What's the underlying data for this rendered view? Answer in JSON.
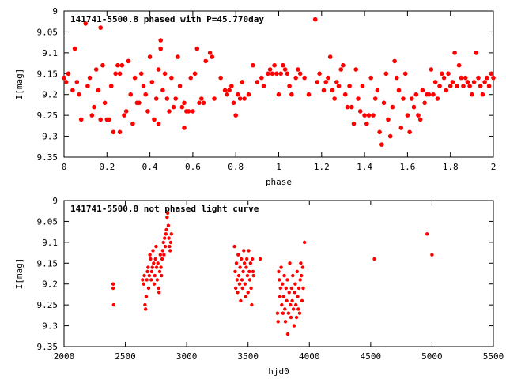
{
  "chart_data": [
    {
      "type": "scatter",
      "title": "141741-5500.8 phased with P=45.770day",
      "xlabel": "phase",
      "ylabel": "I[mag]",
      "xlim": [
        0,
        2
      ],
      "ylim": [
        9.35,
        9.0
      ],
      "y_inverted": true,
      "xticks": [
        "0",
        "0.2",
        "0.4",
        "0.6",
        "0.8",
        "1",
        "1.2",
        "1.4",
        "1.6",
        "1.8",
        "2"
      ],
      "yticks": [
        "9",
        "9.05",
        "9.1",
        "9.15",
        "9.2",
        "9.25",
        "9.3",
        "9.35"
      ],
      "grid": false,
      "marker_color": "#ff0000",
      "points": [
        [
          0.0,
          9.16
        ],
        [
          0.01,
          9.17
        ],
        [
          0.02,
          9.15
        ],
        [
          0.04,
          9.19
        ],
        [
          0.05,
          9.09
        ],
        [
          0.06,
          9.17
        ],
        [
          0.07,
          9.2
        ],
        [
          0.08,
          9.26
        ],
        [
          0.1,
          9.03
        ],
        [
          0.11,
          9.18
        ],
        [
          0.12,
          9.16
        ],
        [
          0.13,
          9.25
        ],
        [
          0.14,
          9.23
        ],
        [
          0.15,
          9.14
        ],
        [
          0.16,
          9.19
        ],
        [
          0.17,
          9.04
        ],
        [
          0.17,
          9.26
        ],
        [
          0.18,
          9.13
        ],
        [
          0.19,
          9.22
        ],
        [
          0.2,
          9.26
        ],
        [
          0.21,
          9.26
        ],
        [
          0.22,
          9.18
        ],
        [
          0.23,
          9.29
        ],
        [
          0.24,
          9.15
        ],
        [
          0.25,
          9.13
        ],
        [
          0.26,
          9.15
        ],
        [
          0.26,
          9.29
        ],
        [
          0.27,
          9.13
        ],
        [
          0.28,
          9.25
        ],
        [
          0.29,
          9.24
        ],
        [
          0.3,
          9.12
        ],
        [
          0.31,
          9.2
        ],
        [
          0.32,
          9.27
        ],
        [
          0.33,
          9.16
        ],
        [
          0.34,
          9.22
        ],
        [
          0.35,
          9.22
        ],
        [
          0.36,
          9.15
        ],
        [
          0.37,
          9.18
        ],
        [
          0.38,
          9.2
        ],
        [
          0.39,
          9.24
        ],
        [
          0.4,
          9.11
        ],
        [
          0.41,
          9.17
        ],
        [
          0.42,
          9.26
        ],
        [
          0.43,
          9.21
        ],
        [
          0.44,
          9.27
        ],
        [
          0.44,
          9.14
        ],
        [
          0.45,
          9.09
        ],
        [
          0.45,
          9.07
        ],
        [
          0.46,
          9.19
        ],
        [
          0.47,
          9.15
        ],
        [
          0.48,
          9.21
        ],
        [
          0.49,
          9.24
        ],
        [
          0.5,
          9.16
        ],
        [
          0.51,
          9.23
        ],
        [
          0.52,
          9.21
        ],
        [
          0.53,
          9.11
        ],
        [
          0.54,
          9.18
        ],
        [
          0.55,
          9.23
        ],
        [
          0.56,
          9.28
        ],
        [
          0.56,
          9.22
        ],
        [
          0.57,
          9.24
        ],
        [
          0.58,
          9.24
        ],
        [
          0.59,
          9.16
        ],
        [
          0.6,
          9.24
        ],
        [
          0.61,
          9.15
        ],
        [
          0.62,
          9.09
        ],
        [
          0.63,
          9.22
        ],
        [
          0.64,
          9.21
        ],
        [
          0.65,
          9.22
        ],
        [
          0.66,
          9.12
        ],
        [
          0.68,
          9.1
        ],
        [
          0.69,
          9.11
        ],
        [
          0.7,
          9.21
        ],
        [
          0.73,
          9.16
        ],
        [
          0.75,
          9.19
        ],
        [
          0.76,
          9.2
        ],
        [
          0.77,
          9.19
        ],
        [
          0.78,
          9.18
        ],
        [
          0.79,
          9.22
        ],
        [
          0.8,
          9.25
        ],
        [
          0.81,
          9.2
        ],
        [
          0.82,
          9.21
        ],
        [
          0.83,
          9.17
        ],
        [
          0.84,
          9.21
        ],
        [
          0.86,
          9.2
        ],
        [
          0.88,
          9.13
        ],
        [
          0.9,
          9.17
        ],
        [
          0.92,
          9.16
        ],
        [
          0.93,
          9.18
        ],
        [
          0.95,
          9.15
        ],
        [
          0.96,
          9.14
        ],
        [
          0.97,
          9.15
        ],
        [
          0.98,
          9.13
        ],
        [
          0.99,
          9.15
        ],
        [
          1.0,
          9.2
        ],
        [
          1.01,
          9.15
        ],
        [
          1.02,
          9.13
        ],
        [
          1.03,
          9.14
        ],
        [
          1.04,
          9.15
        ],
        [
          1.05,
          9.18
        ],
        [
          1.06,
          9.2
        ],
        [
          1.08,
          9.16
        ],
        [
          1.09,
          9.14
        ],
        [
          1.1,
          9.15
        ],
        [
          1.12,
          9.16
        ],
        [
          1.14,
          9.2
        ],
        [
          1.17,
          9.02
        ],
        [
          1.18,
          9.17
        ],
        [
          1.19,
          9.15
        ],
        [
          1.21,
          9.19
        ],
        [
          1.22,
          9.17
        ],
        [
          1.23,
          9.16
        ],
        [
          1.24,
          9.11
        ],
        [
          1.25,
          9.19
        ],
        [
          1.26,
          9.21
        ],
        [
          1.27,
          9.17
        ],
        [
          1.28,
          9.18
        ],
        [
          1.29,
          9.14
        ],
        [
          1.3,
          9.13
        ],
        [
          1.31,
          9.2
        ],
        [
          1.32,
          9.23
        ],
        [
          1.33,
          9.18
        ],
        [
          1.34,
          9.23
        ],
        [
          1.35,
          9.27
        ],
        [
          1.36,
          9.14
        ],
        [
          1.37,
          9.21
        ],
        [
          1.38,
          9.24
        ],
        [
          1.39,
          9.18
        ],
        [
          1.4,
          9.25
        ],
        [
          1.41,
          9.27
        ],
        [
          1.42,
          9.25
        ],
        [
          1.43,
          9.16
        ],
        [
          1.44,
          9.25
        ],
        [
          1.45,
          9.21
        ],
        [
          1.46,
          9.19
        ],
        [
          1.47,
          9.29
        ],
        [
          1.48,
          9.32
        ],
        [
          1.49,
          9.22
        ],
        [
          1.5,
          9.15
        ],
        [
          1.51,
          9.26
        ],
        [
          1.52,
          9.3
        ],
        [
          1.53,
          9.23
        ],
        [
          1.54,
          9.12
        ],
        [
          1.55,
          9.16
        ],
        [
          1.56,
          9.19
        ],
        [
          1.57,
          9.28
        ],
        [
          1.58,
          9.21
        ],
        [
          1.59,
          9.15
        ],
        [
          1.6,
          9.25
        ],
        [
          1.61,
          9.29
        ],
        [
          1.62,
          9.21
        ],
        [
          1.63,
          9.23
        ],
        [
          1.64,
          9.2
        ],
        [
          1.65,
          9.25
        ],
        [
          1.66,
          9.26
        ],
        [
          1.67,
          9.19
        ],
        [
          1.68,
          9.22
        ],
        [
          1.69,
          9.2
        ],
        [
          1.7,
          9.2
        ],
        [
          1.71,
          9.14
        ],
        [
          1.72,
          9.2
        ],
        [
          1.73,
          9.17
        ],
        [
          1.74,
          9.21
        ],
        [
          1.75,
          9.18
        ],
        [
          1.76,
          9.15
        ],
        [
          1.77,
          9.16
        ],
        [
          1.78,
          9.19
        ],
        [
          1.79,
          9.15
        ],
        [
          1.8,
          9.18
        ],
        [
          1.81,
          9.17
        ],
        [
          1.82,
          9.1
        ],
        [
          1.83,
          9.18
        ],
        [
          1.84,
          9.13
        ],
        [
          1.85,
          9.16
        ],
        [
          1.86,
          9.18
        ],
        [
          1.87,
          9.16
        ],
        [
          1.88,
          9.17
        ],
        [
          1.89,
          9.18
        ],
        [
          1.9,
          9.2
        ],
        [
          1.91,
          9.17
        ],
        [
          1.92,
          9.1
        ],
        [
          1.93,
          9.16
        ],
        [
          1.94,
          9.18
        ],
        [
          1.95,
          9.2
        ],
        [
          1.96,
          9.17
        ],
        [
          1.97,
          9.16
        ],
        [
          1.98,
          9.18
        ],
        [
          1.99,
          9.15
        ],
        [
          2.0,
          9.16
        ]
      ]
    },
    {
      "type": "scatter",
      "title": "141741-5500.8 not phased light curve",
      "xlabel": "hjd0",
      "ylabel": "I[mag]",
      "xlim": [
        2000,
        5500
      ],
      "ylim": [
        9.35,
        9.0
      ],
      "y_inverted": true,
      "xticks": [
        "2000",
        "2500",
        "3000",
        "3500",
        "4000",
        "4500",
        "5000",
        "5500"
      ],
      "yticks": [
        "9",
        "9.05",
        "9.1",
        "9.15",
        "9.2",
        "9.25",
        "9.3",
        "9.35"
      ],
      "grid": false,
      "marker_color": "#ff0000",
      "points": [
        [
          2400,
          9.2
        ],
        [
          2400,
          9.21
        ],
        [
          2405,
          9.25
        ],
        [
          2640,
          9.19
        ],
        [
          2650,
          9.2
        ],
        [
          2655,
          9.18
        ],
        [
          2660,
          9.25
        ],
        [
          2665,
          9.26
        ],
        [
          2670,
          9.23
        ],
        [
          2675,
          9.19
        ],
        [
          2680,
          9.17
        ],
        [
          2685,
          9.16
        ],
        [
          2690,
          9.21
        ],
        [
          2695,
          9.18
        ],
        [
          2700,
          9.13
        ],
        [
          2705,
          9.14
        ],
        [
          2710,
          9.19
        ],
        [
          2715,
          9.17
        ],
        [
          2720,
          9.16
        ],
        [
          2725,
          9.12
        ],
        [
          2730,
          9.15
        ],
        [
          2735,
          9.2
        ],
        [
          2740,
          9.18
        ],
        [
          2745,
          9.14
        ],
        [
          2750,
          9.11
        ],
        [
          2755,
          9.16
        ],
        [
          2760,
          9.19
        ],
        [
          2765,
          9.15
        ],
        [
          2770,
          9.21
        ],
        [
          2775,
          9.22
        ],
        [
          2780,
          9.17
        ],
        [
          2785,
          9.13
        ],
        [
          2790,
          9.16
        ],
        [
          2795,
          9.18
        ],
        [
          2800,
          9.14
        ],
        [
          2805,
          9.12
        ],
        [
          2810,
          9.1
        ],
        [
          2815,
          9.13
        ],
        [
          2820,
          9.09
        ],
        [
          2825,
          9.11
        ],
        [
          2830,
          9.08
        ],
        [
          2835,
          9.07
        ],
        [
          2840,
          9.04
        ],
        [
          2845,
          9.03
        ],
        [
          2850,
          9.06
        ],
        [
          2855,
          9.09
        ],
        [
          2860,
          9.11
        ],
        [
          2865,
          9.12
        ],
        [
          2870,
          9.1
        ],
        [
          2875,
          9.08
        ],
        [
          3390,
          9.11
        ],
        [
          3395,
          9.17
        ],
        [
          3400,
          9.21
        ],
        [
          3405,
          9.15
        ],
        [
          3410,
          9.19
        ],
        [
          3415,
          9.22
        ],
        [
          3420,
          9.13
        ],
        [
          3425,
          9.18
        ],
        [
          3430,
          9.2
        ],
        [
          3435,
          9.16
        ],
        [
          3440,
          9.24
        ],
        [
          3445,
          9.14
        ],
        [
          3450,
          9.19
        ],
        [
          3455,
          9.21
        ],
        [
          3460,
          9.17
        ],
        [
          3465,
          9.12
        ],
        [
          3470,
          9.15
        ],
        [
          3475,
          9.2
        ],
        [
          3480,
          9.23
        ],
        [
          3485,
          9.16
        ],
        [
          3490,
          9.14
        ],
        [
          3495,
          9.18
        ],
        [
          3500,
          9.22
        ],
        [
          3505,
          9.12
        ],
        [
          3510,
          9.17
        ],
        [
          3515,
          9.19
        ],
        [
          3520,
          9.15
        ],
        [
          3525,
          9.21
        ],
        [
          3530,
          9.25
        ],
        [
          3535,
          9.14
        ],
        [
          3540,
          9.17
        ],
        [
          3545,
          9.18
        ],
        [
          3600,
          9.14
        ],
        [
          3740,
          9.27
        ],
        [
          3745,
          9.29
        ],
        [
          3750,
          9.17
        ],
        [
          3755,
          9.19
        ],
        [
          3760,
          9.23
        ],
        [
          3765,
          9.21
        ],
        [
          3770,
          9.16
        ],
        [
          3775,
          9.25
        ],
        [
          3780,
          9.2
        ],
        [
          3785,
          9.27
        ],
        [
          3790,
          9.23
        ],
        [
          3795,
          9.18
        ],
        [
          3800,
          9.26
        ],
        [
          3805,
          9.29
        ],
        [
          3810,
          9.21
        ],
        [
          3815,
          9.24
        ],
        [
          3820,
          9.19
        ],
        [
          3825,
          9.32
        ],
        [
          3830,
          9.27
        ],
        [
          3835,
          9.22
        ],
        [
          3840,
          9.15
        ],
        [
          3845,
          9.25
        ],
        [
          3850,
          9.28
        ],
        [
          3855,
          9.21
        ],
        [
          3860,
          9.24
        ],
        [
          3865,
          9.18
        ],
        [
          3870,
          9.26
        ],
        [
          3875,
          9.3
        ],
        [
          3880,
          9.22
        ],
        [
          3885,
          9.2
        ],
        [
          3890,
          9.25
        ],
        [
          3895,
          9.28
        ],
        [
          3900,
          9.17
        ],
        [
          3905,
          9.23
        ],
        [
          3910,
          9.26
        ],
        [
          3915,
          9.21
        ],
        [
          3920,
          9.27
        ],
        [
          3925,
          9.19
        ],
        [
          3930,
          9.15
        ],
        [
          3935,
          9.18
        ],
        [
          3940,
          9.24
        ],
        [
          3945,
          9.16
        ],
        [
          3950,
          9.21
        ],
        [
          3960,
          9.1
        ],
        [
          4530,
          9.14
        ],
        [
          4960,
          9.08
        ],
        [
          5000,
          9.13
        ]
      ]
    }
  ]
}
